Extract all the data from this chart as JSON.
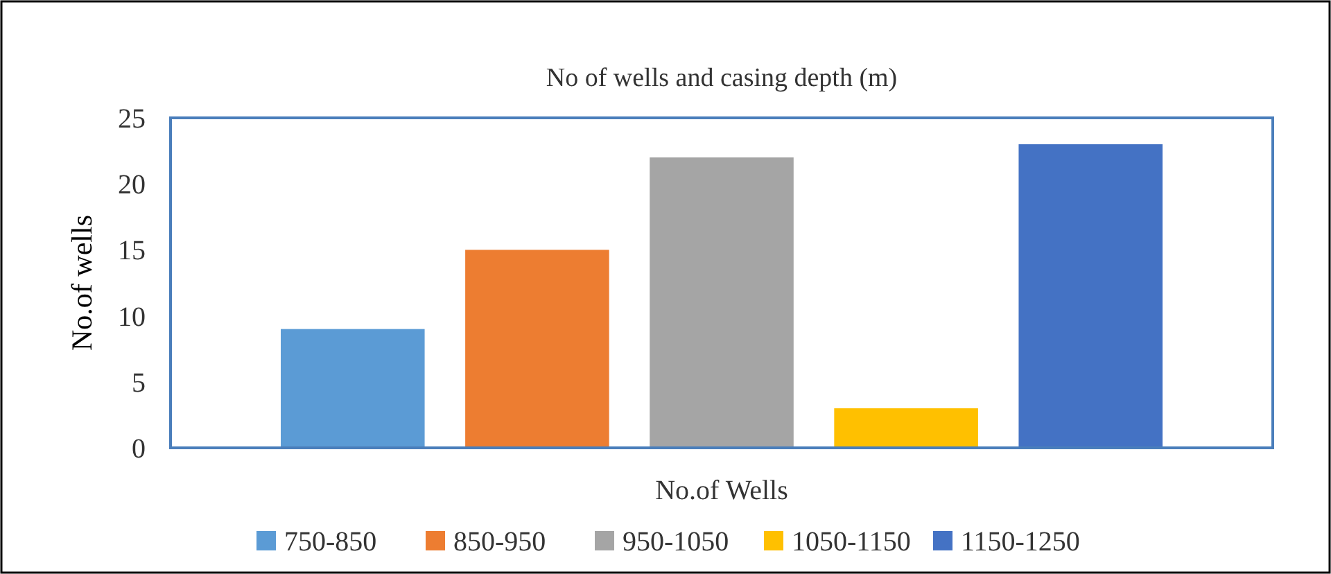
{
  "chart_data": {
    "type": "bar",
    "title": "No of wells and casing depth (m)",
    "xlabel": "No.of Wells",
    "ylabel": "No.of  wells",
    "categories": [
      null
    ],
    "series": [
      {
        "name": "750-850",
        "color": "#5b9bd5",
        "values": [
          9
        ]
      },
      {
        "name": "850-950",
        "color": "#ed7d31",
        "values": [
          15
        ]
      },
      {
        "name": "950-1050",
        "color": "#a5a5a5",
        "values": [
          22
        ]
      },
      {
        "name": "1050-1150",
        "color": "#ffc000",
        "values": [
          3
        ]
      },
      {
        "name": "1150-1250",
        "color": "#4472c4",
        "values": [
          23
        ]
      }
    ],
    "ylim": [
      0,
      25
    ],
    "yticks": [
      0,
      5,
      10,
      15,
      20,
      25
    ],
    "grid": false,
    "legend": "bottom"
  }
}
